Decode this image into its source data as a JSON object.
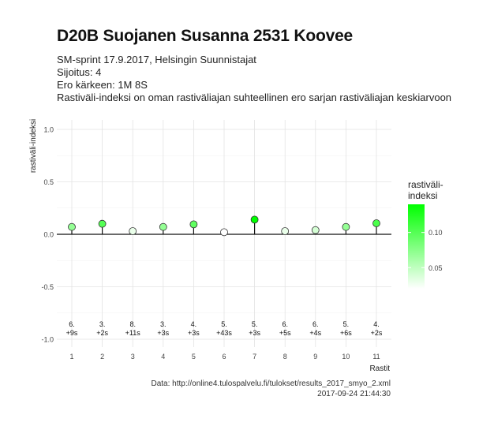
{
  "header": {
    "title": "D20B Suojanen Susanna 2531 Koovee",
    "lines": [
      "SM-sprint 17.9.2017, Helsingin Suunnistajat",
      "Sijoitus: 4",
      "Ero kärkeen: 1M 8S",
      "Rastiväli-indeksi on oman rastiväliajan suhteellinen ero sarjan rastiväliajan keskiarvoon"
    ]
  },
  "caption": {
    "source": "Data: http://online4.tulospalvelu.fi/tulokset/results_2017_smyo_2.xml",
    "timestamp": "2017-09-24 21:44:30"
  },
  "chart_data": {
    "type": "scatter",
    "xlabel": "Rastit",
    "ylabel": "rastiväli-indeksi",
    "ylim": [
      -1.0,
      1.0
    ],
    "yticks": [
      -1.0,
      -0.5,
      0.0,
      0.5,
      1.0
    ],
    "ytick_labels": [
      "-1.0",
      "-0.5",
      "0.0",
      "0.5",
      "1.0"
    ],
    "x": [
      1,
      2,
      3,
      4,
      5,
      6,
      7,
      8,
      9,
      10,
      11
    ],
    "x_tick_labels": [
      "1",
      "2",
      "3",
      "4",
      "5",
      "6",
      "7",
      "8",
      "9",
      "10",
      "11"
    ],
    "values": [
      0.07,
      0.1,
      0.03,
      0.07,
      0.095,
      0.02,
      0.14,
      0.03,
      0.04,
      0.07,
      0.105
    ],
    "rank_labels": [
      "6.",
      "3.",
      "8.",
      "3.",
      "4.",
      "5.",
      "5.",
      "6.",
      "6.",
      "5.",
      "4."
    ],
    "diff_labels": [
      "+9s",
      "+2s",
      "+11s",
      "+3s",
      "+3s",
      "+43s",
      "+3s",
      "+5s",
      "+4s",
      "+6s",
      "+2s"
    ],
    "grid": true,
    "legend": {
      "title": "rastiväli-\nindeksi",
      "position": "right",
      "range": [
        0.02,
        0.14
      ],
      "ticks": [
        0.05,
        0.1
      ],
      "tick_labels": [
        "0.05",
        "0.10"
      ],
      "color_low": "#ffffff",
      "color_high": "#00ff00"
    }
  }
}
